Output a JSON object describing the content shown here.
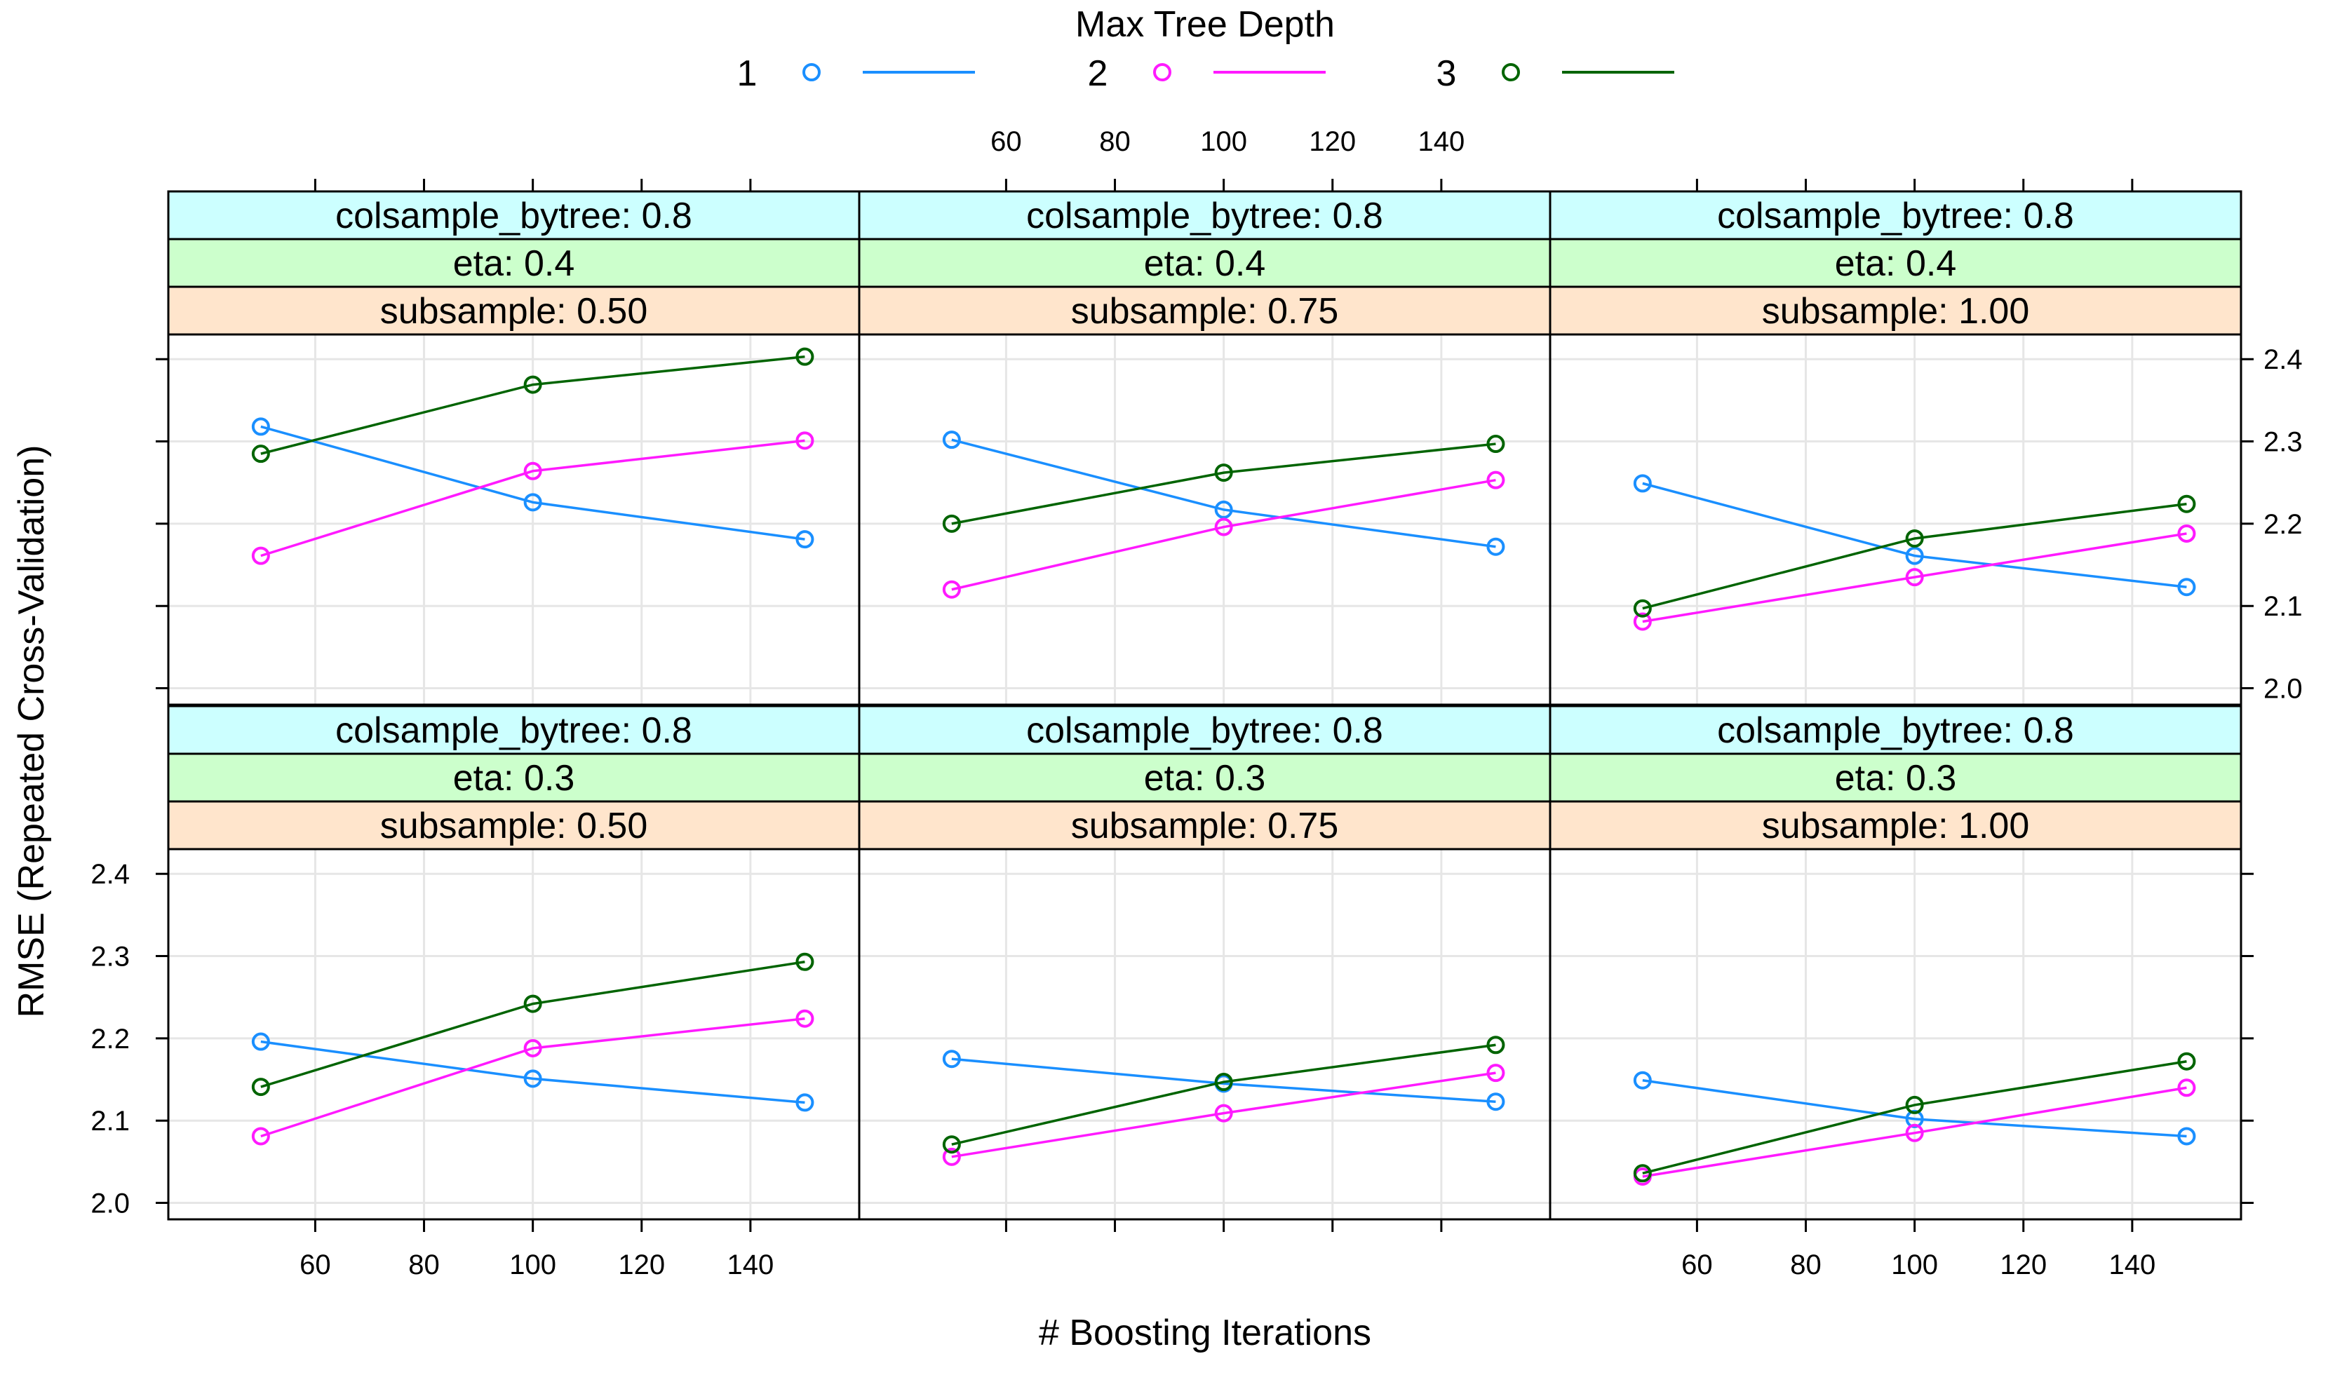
{
  "chart_data": {
    "type": "line",
    "xlabel": "# Boosting Iterations",
    "ylabel": "RMSE (Repeated Cross-Validation)",
    "x": [
      50,
      100,
      150
    ],
    "xlim": [
      33,
      160
    ],
    "ylim": [
      1.98,
      2.43
    ],
    "xticks": [
      60,
      80,
      100,
      120,
      140
    ],
    "yticks": [
      2.0,
      2.1,
      2.2,
      2.3,
      2.4
    ],
    "xtick_labels": [
      "60",
      "80",
      "100",
      "120",
      "140"
    ],
    "ytick_labels": [
      "2.0",
      "2.1",
      "2.2",
      "2.3",
      "2.4"
    ],
    "legend": {
      "title": "Max Tree Depth",
      "entries": [
        {
          "label": "1",
          "color": "#1a8fff"
        },
        {
          "label": "2",
          "color": "#ff1aff"
        },
        {
          "label": "3",
          "color": "#006400"
        }
      ]
    },
    "panels": [
      {
        "strips": [
          "colsample_bytree: 0.8",
          "eta: 0.4",
          "subsample: 0.50"
        ],
        "series": [
          {
            "name": "1",
            "values": [
              2.318,
              2.226,
              2.181
            ]
          },
          {
            "name": "2",
            "values": [
              2.161,
              2.264,
              2.301
            ]
          },
          {
            "name": "3",
            "values": [
              2.285,
              2.369,
              2.403
            ]
          }
        ]
      },
      {
        "strips": [
          "colsample_bytree: 0.8",
          "eta: 0.4",
          "subsample: 0.75"
        ],
        "series": [
          {
            "name": "1",
            "values": [
              2.302,
              2.217,
              2.172
            ]
          },
          {
            "name": "2",
            "values": [
              2.12,
              2.196,
              2.253
            ]
          },
          {
            "name": "3",
            "values": [
              2.2,
              2.262,
              2.297
            ]
          }
        ]
      },
      {
        "strips": [
          "colsample_bytree: 0.8",
          "eta: 0.4",
          "subsample: 1.00"
        ],
        "series": [
          {
            "name": "1",
            "values": [
              2.249,
              2.161,
              2.123
            ]
          },
          {
            "name": "2",
            "values": [
              2.081,
              2.135,
              2.188
            ]
          },
          {
            "name": "3",
            "values": [
              2.097,
              2.182,
              2.224
            ]
          }
        ]
      },
      {
        "strips": [
          "colsample_bytree: 0.8",
          "eta: 0.3",
          "subsample: 0.50"
        ],
        "series": [
          {
            "name": "1",
            "values": [
              2.196,
              2.151,
              2.122
            ]
          },
          {
            "name": "2",
            "values": [
              2.081,
              2.188,
              2.224
            ]
          },
          {
            "name": "3",
            "values": [
              2.141,
              2.242,
              2.293
            ]
          }
        ]
      },
      {
        "strips": [
          "colsample_bytree: 0.8",
          "eta: 0.3",
          "subsample: 0.75"
        ],
        "series": [
          {
            "name": "1",
            "values": [
              2.175,
              2.145,
              2.123
            ]
          },
          {
            "name": "2",
            "values": [
              2.056,
              2.109,
              2.158
            ]
          },
          {
            "name": "3",
            "values": [
              2.071,
              2.147,
              2.192
            ]
          }
        ]
      },
      {
        "strips": [
          "colsample_bytree: 0.8",
          "eta: 0.3",
          "subsample: 1.00"
        ],
        "series": [
          {
            "name": "1",
            "values": [
              2.149,
              2.102,
              2.081
            ]
          },
          {
            "name": "2",
            "values": [
              2.032,
              2.085,
              2.14
            ]
          },
          {
            "name": "3",
            "values": [
              2.036,
              2.119,
              2.172
            ]
          }
        ]
      }
    ]
  },
  "colors": {
    "strip_colsample": "#ccffff",
    "strip_eta": "#ccffcc",
    "strip_subsample": "#ffe5cc",
    "grid": "#e6e6e6"
  }
}
